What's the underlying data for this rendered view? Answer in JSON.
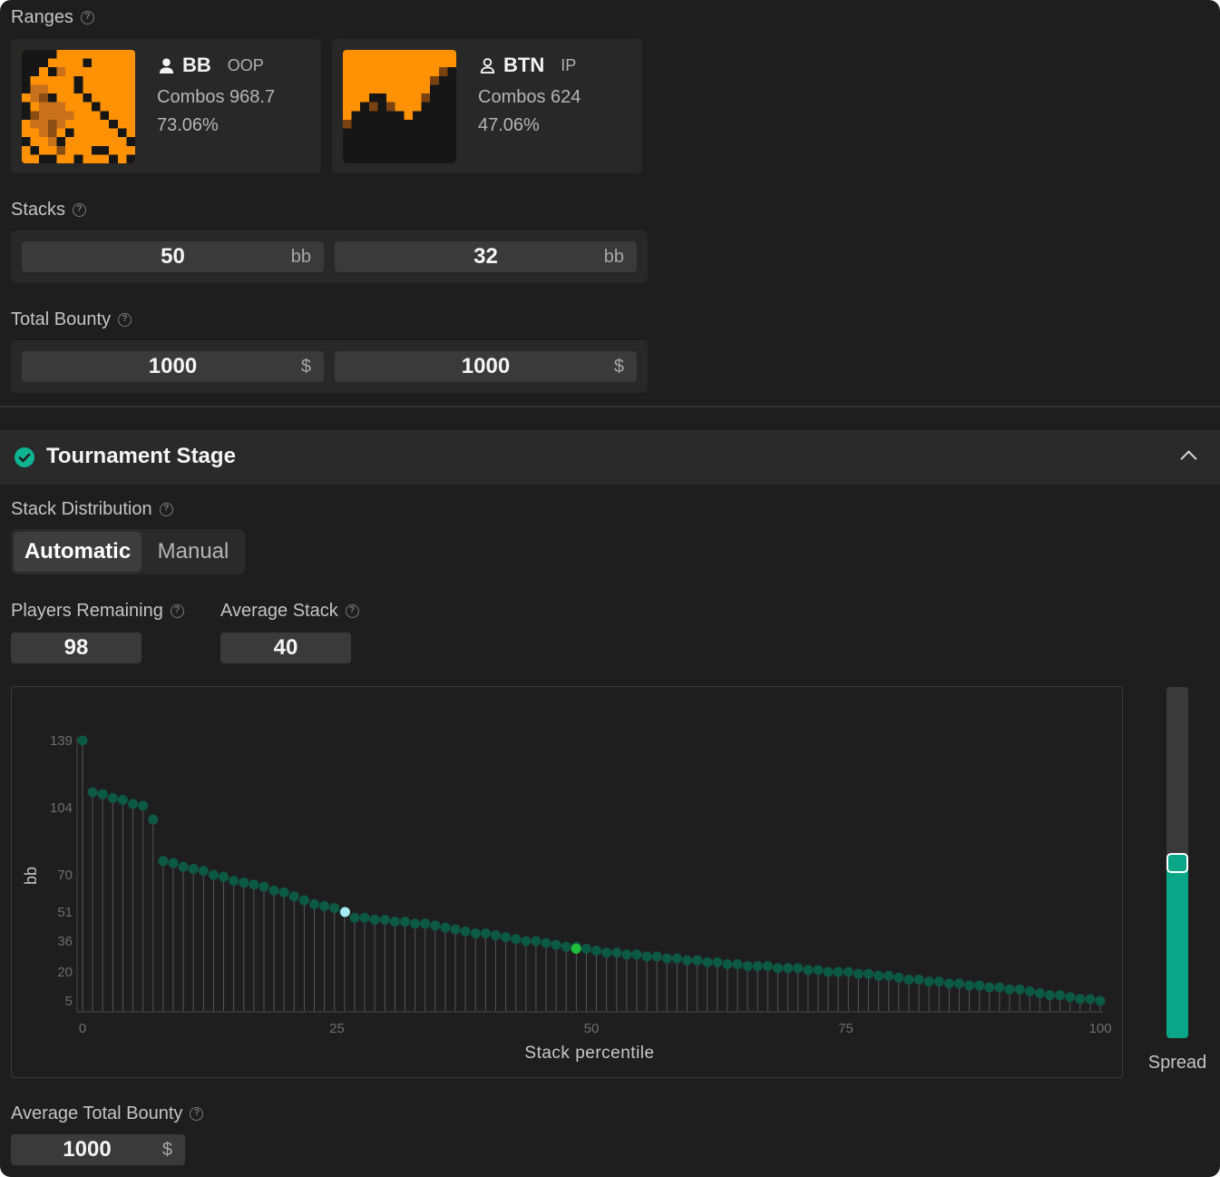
{
  "ranges": {
    "label": "Ranges",
    "players": [
      {
        "name": "BB",
        "position": "OOP",
        "combos": "Combos 968.7",
        "percent": "73.06%"
      },
      {
        "name": "BTN",
        "position": "IP",
        "combos": "Combos 624",
        "percent": "47.06%"
      }
    ]
  },
  "stacks": {
    "label": "Stacks",
    "values": [
      "50",
      "32"
    ],
    "unit": "bb"
  },
  "bounty": {
    "label": "Total Bounty",
    "values": [
      "1000",
      "1000"
    ],
    "unit": "$"
  },
  "stage": {
    "title": "Tournament Stage"
  },
  "distribution": {
    "label": "Stack Distribution",
    "modes": [
      "Automatic",
      "Manual"
    ],
    "selected": "Automatic"
  },
  "players_remaining": {
    "label": "Players Remaining",
    "value": "98"
  },
  "average_stack": {
    "label": "Average Stack",
    "value": "40"
  },
  "spread": {
    "label": "Spread",
    "level": 0.5
  },
  "average_bounty": {
    "label": "Average Total Bounty",
    "value": "1000",
    "unit": "$"
  },
  "colors": {
    "accent": "#0fb493",
    "range_orange": "#ff9105",
    "point": "#0d5a44",
    "hero_point": "#a9e9f5",
    "villain_point": "#22c03a"
  },
  "chart_data": {
    "type": "scatter",
    "xlabel": "Stack percentile",
    "ylabel": "bb",
    "xticks": [
      "0",
      "25",
      "50",
      "75",
      "100"
    ],
    "yticks": [
      "139",
      "104",
      "70",
      "51",
      "36",
      "20",
      "5"
    ],
    "xlim": [
      0,
      100
    ],
    "highlights": [
      {
        "x": 25.8,
        "y": 51
      },
      {
        "x": 48.5,
        "y": 32
      }
    ],
    "y": [
      139,
      112,
      111,
      109,
      108,
      106,
      105,
      98,
      77,
      76,
      74,
      73,
      72,
      70,
      69,
      67,
      66,
      65,
      64,
      62,
      61,
      59,
      57,
      55,
      54,
      53,
      51,
      48,
      48,
      47,
      47,
      46,
      46,
      45,
      45,
      44,
      43,
      42,
      41,
      40,
      40,
      39,
      38,
      37,
      36,
      36,
      35,
      34,
      33,
      33,
      32,
      31,
      30,
      30,
      29,
      29,
      28,
      28,
      27,
      27,
      26,
      26,
      25,
      25,
      24,
      24,
      23,
      23,
      23,
      22,
      22,
      22,
      21,
      21,
      20,
      20,
      20,
      19,
      19,
      18,
      18,
      17,
      16,
      16,
      15,
      15,
      14,
      14,
      13,
      13,
      12,
      12,
      11,
      11,
      10,
      9,
      8,
      8,
      7,
      6,
      6,
      5
    ]
  }
}
